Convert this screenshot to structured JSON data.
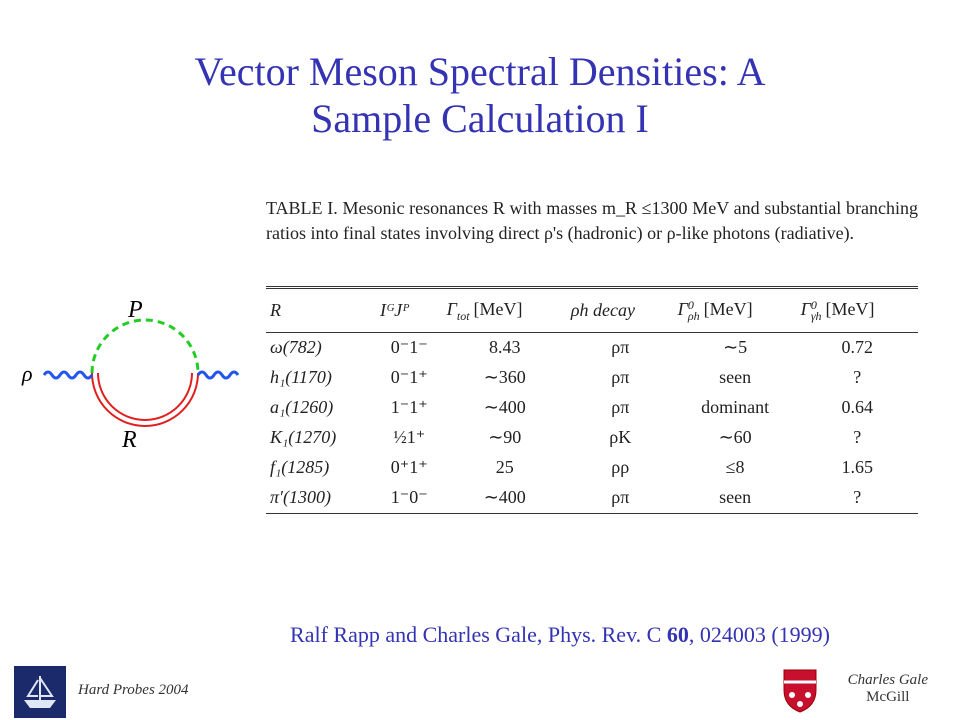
{
  "title": {
    "lines": [
      "Vector Meson Spectral Densities: A",
      "Sample Calculation I"
    ]
  },
  "diagram": {
    "labels": {
      "top": "P",
      "bottom": "R",
      "left": "ρ"
    }
  },
  "table": {
    "caption": "TABLE I. Mesonic resonances R with masses m_R ≤1300 MeV and substantial branching ratios into final states involving direct ρ's (hadronic) or ρ-like photons (radiative).",
    "headers": [
      "R",
      "IᴳJᴾ",
      {
        "base": "Γ",
        "sub": "tot",
        "unit": "[MeV]"
      },
      "ρh decay",
      {
        "base": "Γ",
        "sup": "0",
        "sub": "ρh",
        "unit": "[MeV]"
      },
      {
        "base": "Γ",
        "sup": "0",
        "sub": "γh",
        "unit": "[MeV]"
      }
    ],
    "rows": [
      [
        "ω(782)",
        "0⁻1⁻",
        "8.43",
        "ρπ",
        "∼5",
        "0.72"
      ],
      [
        "h₁(1170)",
        "0⁻1⁺",
        "∼360",
        "ρπ",
        "seen",
        "?"
      ],
      [
        "a₁(1260)",
        "1⁻1⁺",
        "∼400",
        "ρπ",
        "dominant",
        "0.64"
      ],
      [
        "K₁(1270)",
        "½1⁺",
        "∼90",
        "ρK",
        "∼60",
        "?"
      ],
      [
        "f₁(1285)",
        "0⁺1⁺",
        "25",
        "ρρ",
        "≤8",
        "1.65"
      ],
      [
        "π′(1300)",
        "1⁻0⁻",
        "∼400",
        "ρπ",
        "seen",
        "?"
      ]
    ]
  },
  "citation": {
    "before": "Ralf Rapp and Charles Gale, Phys. Rev. C ",
    "volume": "60",
    "after": ", 024003 (1999)"
  },
  "footer": {
    "left": "Hard Probes 2004",
    "right_name": "Charles Gale",
    "right_inst": "McGill"
  }
}
